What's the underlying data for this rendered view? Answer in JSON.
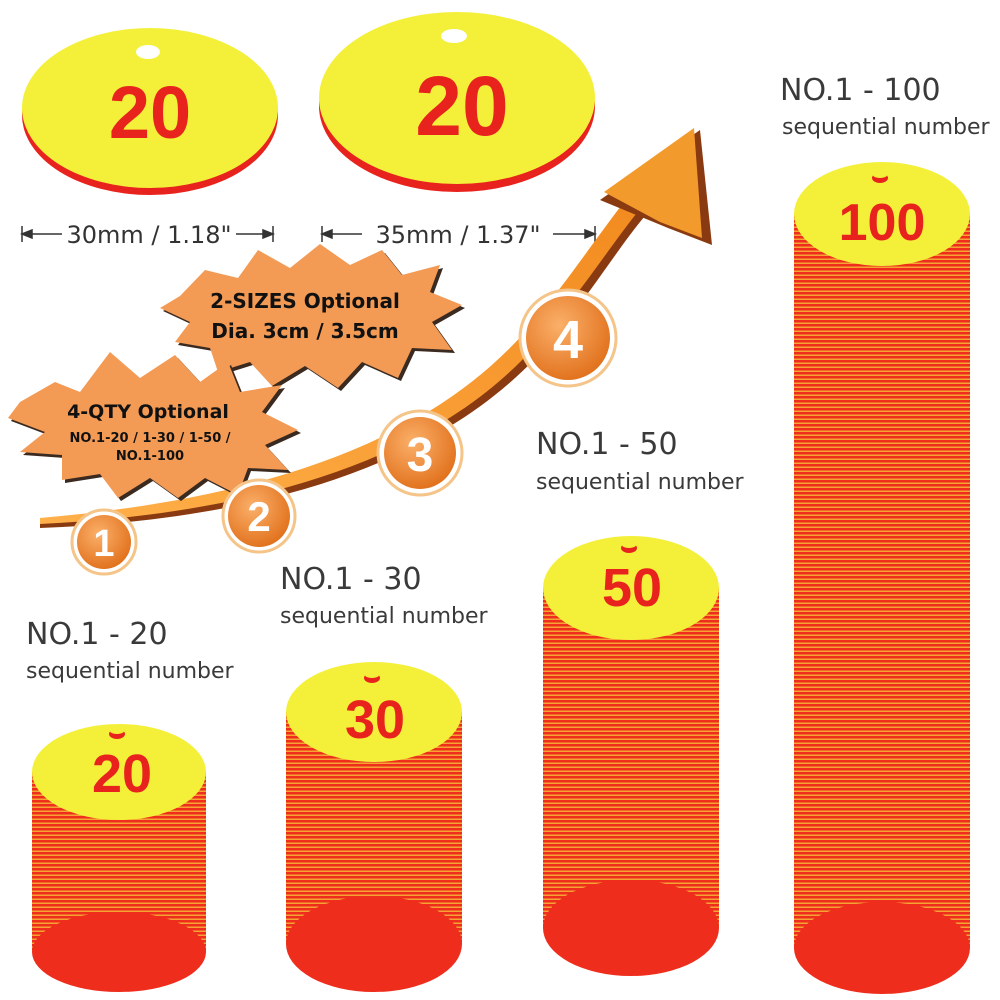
{
  "sample_tags": [
    {
      "number": "20"
    },
    {
      "number": "20"
    }
  ],
  "dimensions": [
    {
      "text": "30mm / 1.18\""
    },
    {
      "text": "35mm / 1.37\""
    }
  ],
  "badges": {
    "sizes": {
      "line1": "2-SIZES Optional",
      "line2": "Dia. 3cm / 3.5cm"
    },
    "qty": {
      "line1": "4-QTY Optional",
      "line2": "NO.1-20 / 1-30 / 1-50 /",
      "line3": "NO.1-100"
    }
  },
  "steps": [
    "1",
    "2",
    "3",
    "4"
  ],
  "stacks": [
    {
      "title": "NO.1 - 20",
      "subtitle": "sequential number",
      "top_number": "20"
    },
    {
      "title": "NO.1 - 30",
      "subtitle": "sequential number",
      "top_number": "30"
    },
    {
      "title": "NO.1 - 50",
      "subtitle": "sequential number",
      "top_number": "50"
    },
    {
      "title": "NO.1 - 100",
      "subtitle": "sequential number",
      "top_number": "100"
    }
  ],
  "colors": {
    "tag_face": "#f4f03a",
    "tag_text": "#e8231d",
    "tag_edge": "#e8231d",
    "arrow": "#f39a2c",
    "step_circle": "#ef8a2e",
    "badge": "#f39a55"
  }
}
